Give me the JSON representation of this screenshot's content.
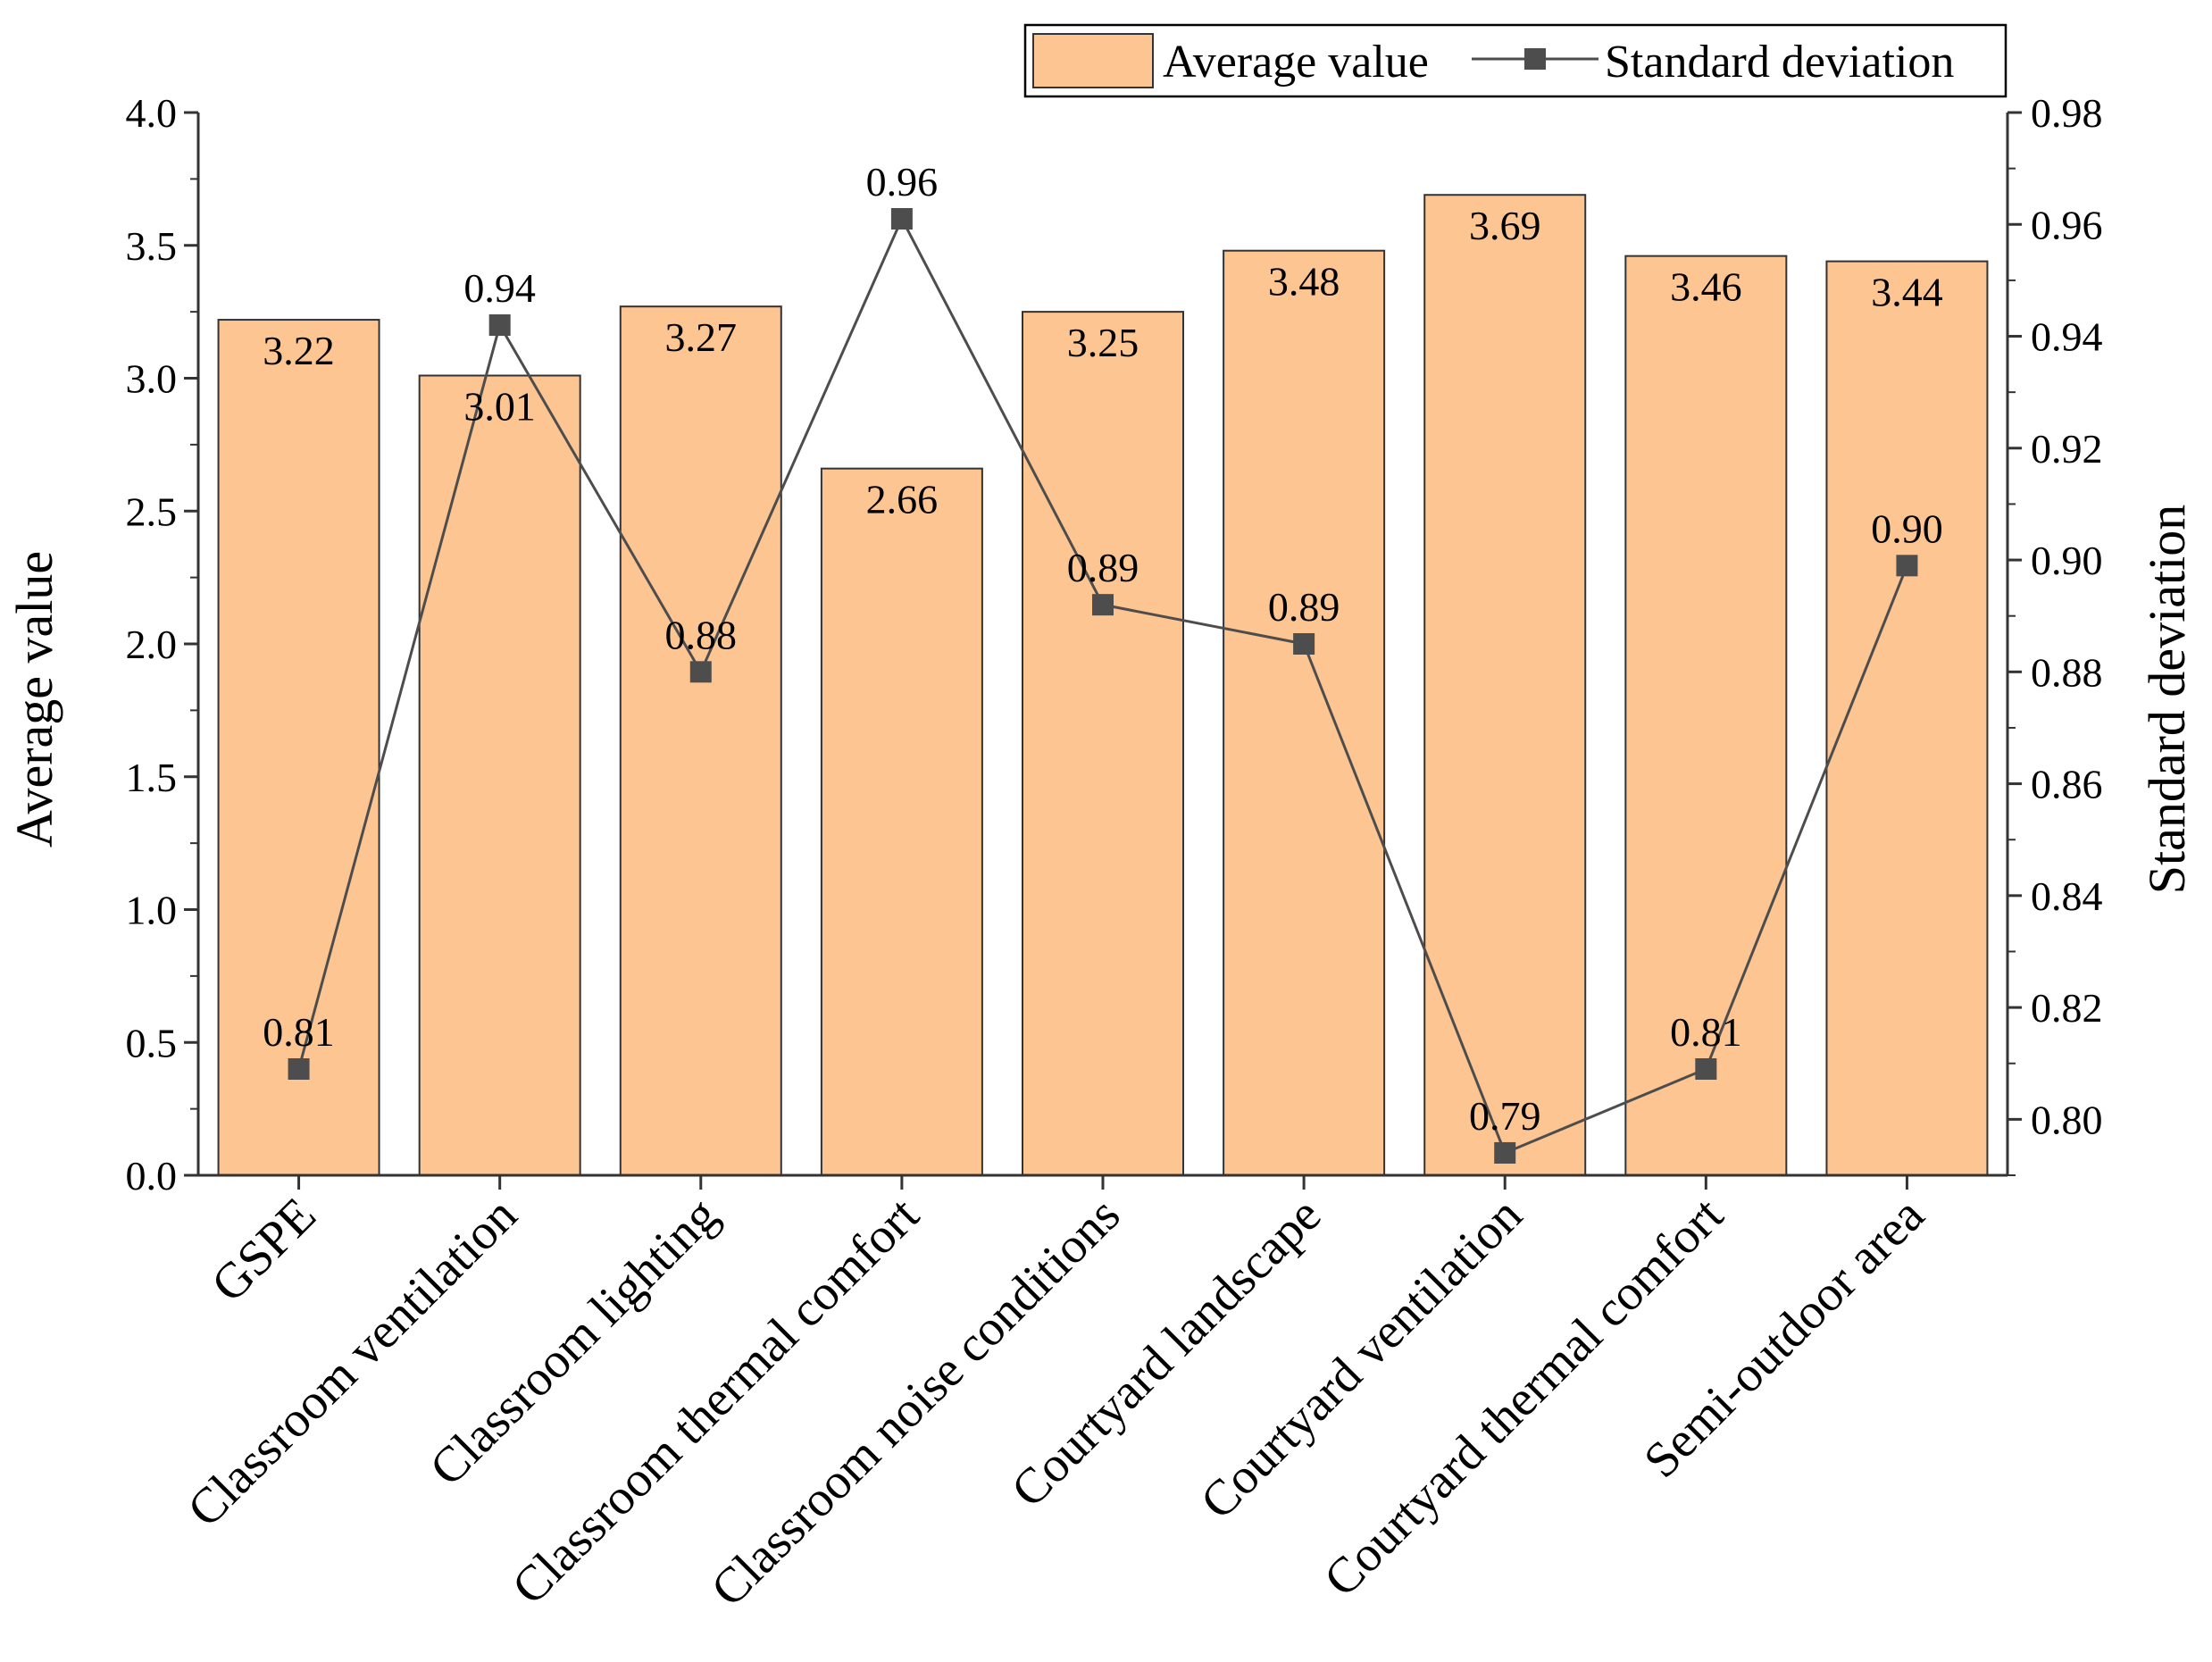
{
  "chart_data": {
    "type": "bar+line",
    "categories": [
      "GSPE",
      "Classroom ventilation",
      "Classroom lighting",
      "Classroom thermal comfort",
      "Classroom noise conditions",
      "Courtyard landscape",
      "Courtyard ventilation",
      "Courtyard thermal comfort",
      "Semi-outdoor area"
    ],
    "series": [
      {
        "name": "Average value",
        "kind": "bar",
        "axis": "left",
        "values": [
          3.22,
          3.01,
          3.27,
          2.66,
          3.25,
          3.48,
          3.69,
          3.46,
          3.44
        ],
        "labels": [
          "3.22",
          "3.01",
          "3.27",
          "2.66",
          "3.25",
          "3.48",
          "3.69",
          "3.46",
          "3.44"
        ],
        "color": "#FDC591"
      },
      {
        "name": "Standard deviation",
        "kind": "line",
        "axis": "right",
        "values": [
          0.809,
          0.942,
          0.88,
          0.961,
          0.892,
          0.885,
          0.794,
          0.809,
          0.899
        ],
        "labels": [
          "0.81",
          "0.94",
          "0.88",
          "0.96",
          "0.89",
          "0.89",
          "0.79",
          "0.81",
          "0.90"
        ],
        "color": "#4d4d4d"
      }
    ],
    "ylabel": "Average value",
    "y2label": "Standard deviation",
    "ylim": [
      0,
      4.0
    ],
    "y2lim": [
      0.79,
      0.98
    ],
    "yticks": [
      "0.0",
      "0.5",
      "1.0",
      "1.5",
      "2.0",
      "2.5",
      "3.0",
      "3.5",
      "4.0"
    ],
    "y2ticks": [
      "0.80",
      "0.82",
      "0.84",
      "0.86",
      "0.88",
      "0.90",
      "0.92",
      "0.94",
      "0.96",
      "0.98"
    ],
    "legend": [
      "Average value",
      "Standard deviation"
    ],
    "legend_position": "top-right",
    "grid": false
  }
}
